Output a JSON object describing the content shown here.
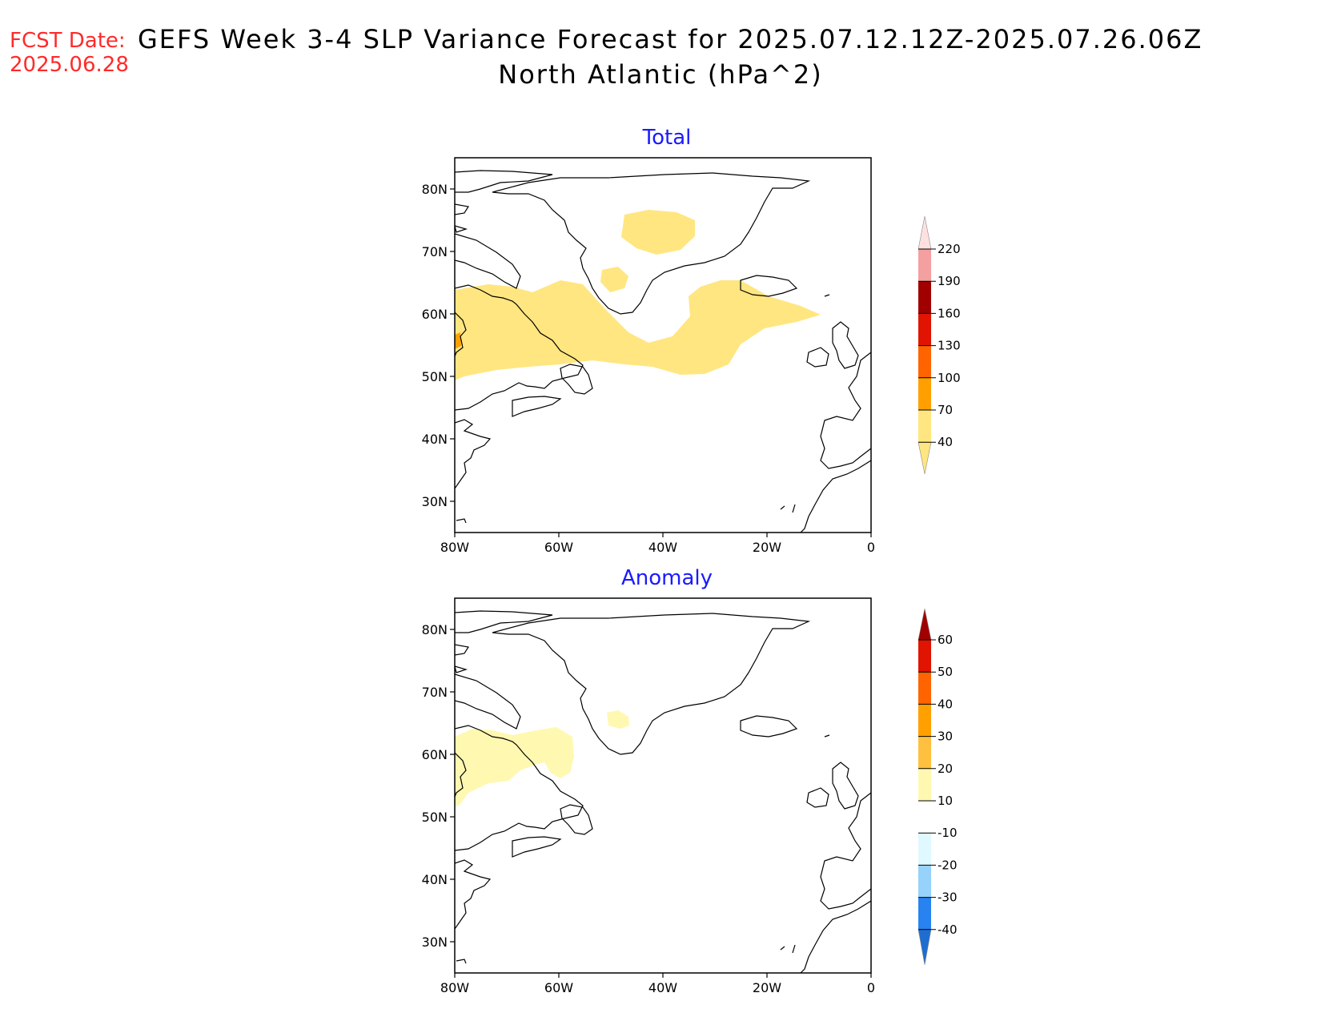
{
  "header": {
    "fcst_label": "FCST Date:",
    "fcst_date": "2025.06.28",
    "title_line1": "GEFS Week 3-4 SLP Variance Forecast for 2025.07.12.12Z-2025.07.26.06Z",
    "title_line2": "North Atlantic (hPa^2)"
  },
  "colors": {
    "title_blue": "#1a1aff",
    "fcst_red": "#ff2a2a"
  },
  "map": {
    "lon_range": [
      -80,
      0
    ],
    "lat_range": [
      25,
      85
    ],
    "x_tick_labels": [
      "80W",
      "60W",
      "40W",
      "20W",
      "0"
    ],
    "y_tick_labels": [
      "80N",
      "70N",
      "60N",
      "50N",
      "40N",
      "30N"
    ]
  },
  "panels": [
    {
      "name": "total",
      "title": "Total",
      "colorbar": {
        "labels": [
          "220",
          "190",
          "160",
          "130",
          "100",
          "70",
          "40"
        ],
        "colors": [
          "#ffe0e0",
          "#f4a0a0",
          "#a00000",
          "#e01400",
          "#ff6400",
          "#ffa000",
          "#ffe680"
        ]
      }
    },
    {
      "name": "anomaly",
      "title": "Anomaly",
      "colorbar": {
        "labels": [
          "60",
          "50",
          "40",
          "30",
          "20",
          "10",
          "-10",
          "-20",
          "-30",
          "-40"
        ],
        "colors": [
          "#a00000",
          "#e01400",
          "#ff6400",
          "#ffa000",
          "#ffc040",
          "#fff8b0",
          "#ffffff",
          "#e0f8ff",
          "#96d2fa",
          "#2882f0",
          "#1e6ed2"
        ]
      }
    }
  ]
}
